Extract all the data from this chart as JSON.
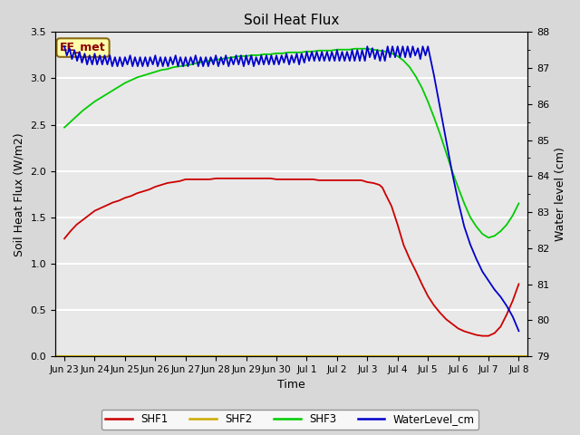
{
  "title": "Soil Heat Flux",
  "xlabel": "Time",
  "ylabel_left": "Soil Heat Flux (W/m2)",
  "ylabel_right": "Water level (cm)",
  "annotation": "EE_met",
  "ylim_left": [
    0.0,
    3.5
  ],
  "ylim_right": [
    79.0,
    88.0
  ],
  "colors": {
    "SHF1": "#cc0000",
    "SHF2": "#ccaa00",
    "SHF3": "#00cc00",
    "WaterLevel_cm": "#0000cc"
  },
  "xtick_labels": [
    "Jun 23",
    "Jun 24",
    "Jun 25",
    "Jun 26",
    "Jun 27",
    "Jun 28",
    "Jun 29",
    "Jun 30",
    "Jul 1",
    "Jul 2",
    "Jul 3",
    "Jul 4",
    "Jul 5",
    "Jul 6",
    "Jul 7",
    "Jul 8"
  ],
  "shf1_x": [
    0,
    0.2,
    0.4,
    0.6,
    0.8,
    1.0,
    1.2,
    1.4,
    1.6,
    1.8,
    2.0,
    2.2,
    2.4,
    2.6,
    2.8,
    3.0,
    3.2,
    3.4,
    3.6,
    3.8,
    4.0,
    4.2,
    4.4,
    4.6,
    4.8,
    5.0,
    5.2,
    5.4,
    5.6,
    5.8,
    6.0,
    6.2,
    6.4,
    6.6,
    6.8,
    7.0,
    7.2,
    7.4,
    7.6,
    7.8,
    8.0,
    8.2,
    8.4,
    8.6,
    8.8,
    9.0,
    9.2,
    9.4,
    9.6,
    9.8,
    10.0,
    10.2,
    10.4,
    10.5,
    10.6,
    10.8,
    11.0,
    11.2,
    11.4,
    11.6,
    11.8,
    12.0,
    12.2,
    12.4,
    12.6,
    12.8,
    13.0,
    13.2,
    13.4,
    13.6,
    13.8,
    14.0,
    14.2,
    14.4,
    14.6,
    14.8,
    15.0
  ],
  "shf1_y": [
    1.27,
    1.35,
    1.42,
    1.47,
    1.52,
    1.57,
    1.6,
    1.63,
    1.66,
    1.68,
    1.71,
    1.73,
    1.76,
    1.78,
    1.8,
    1.83,
    1.85,
    1.87,
    1.88,
    1.89,
    1.91,
    1.91,
    1.91,
    1.91,
    1.91,
    1.92,
    1.92,
    1.92,
    1.92,
    1.92,
    1.92,
    1.92,
    1.92,
    1.92,
    1.92,
    1.91,
    1.91,
    1.91,
    1.91,
    1.91,
    1.91,
    1.91,
    1.9,
    1.9,
    1.9,
    1.9,
    1.9,
    1.9,
    1.9,
    1.9,
    1.88,
    1.87,
    1.85,
    1.82,
    1.75,
    1.62,
    1.42,
    1.2,
    1.05,
    0.92,
    0.78,
    0.65,
    0.55,
    0.47,
    0.4,
    0.35,
    0.3,
    0.27,
    0.25,
    0.23,
    0.22,
    0.22,
    0.25,
    0.32,
    0.45,
    0.6,
    0.78
  ],
  "shf3_x": [
    0,
    0.2,
    0.4,
    0.6,
    0.8,
    1.0,
    1.2,
    1.4,
    1.6,
    1.8,
    2.0,
    2.2,
    2.4,
    2.6,
    2.8,
    3.0,
    3.2,
    3.4,
    3.6,
    3.8,
    4.0,
    4.2,
    4.4,
    4.6,
    4.8,
    5.0,
    5.2,
    5.4,
    5.6,
    5.8,
    6.0,
    6.2,
    6.4,
    6.6,
    6.8,
    7.0,
    7.2,
    7.4,
    7.6,
    7.8,
    8.0,
    8.2,
    8.4,
    8.6,
    8.8,
    9.0,
    9.2,
    9.4,
    9.6,
    9.8,
    10.0,
    10.2,
    10.4,
    10.6,
    10.8,
    11.0,
    11.2,
    11.4,
    11.6,
    11.8,
    12.0,
    12.2,
    12.4,
    12.6,
    12.8,
    13.0,
    13.2,
    13.4,
    13.6,
    13.8,
    14.0,
    14.2,
    14.4,
    14.6,
    14.8,
    15.0
  ],
  "shf3_y": [
    2.47,
    2.53,
    2.59,
    2.65,
    2.7,
    2.75,
    2.79,
    2.83,
    2.87,
    2.91,
    2.95,
    2.98,
    3.01,
    3.03,
    3.05,
    3.07,
    3.09,
    3.1,
    3.12,
    3.13,
    3.14,
    3.15,
    3.17,
    3.18,
    3.19,
    3.2,
    3.21,
    3.22,
    3.23,
    3.24,
    3.24,
    3.25,
    3.25,
    3.26,
    3.26,
    3.27,
    3.27,
    3.28,
    3.28,
    3.28,
    3.29,
    3.29,
    3.3,
    3.3,
    3.3,
    3.31,
    3.31,
    3.31,
    3.32,
    3.32,
    3.32,
    3.31,
    3.3,
    3.29,
    3.27,
    3.24,
    3.19,
    3.12,
    3.02,
    2.9,
    2.75,
    2.58,
    2.4,
    2.2,
    2.0,
    1.82,
    1.65,
    1.5,
    1.4,
    1.32,
    1.28,
    1.3,
    1.35,
    1.42,
    1.52,
    1.65
  ],
  "water_x": [
    0,
    0.08,
    0.17,
    0.25,
    0.33,
    0.42,
    0.5,
    0.58,
    0.67,
    0.75,
    0.83,
    0.92,
    1.0,
    1.08,
    1.17,
    1.25,
    1.33,
    1.42,
    1.5,
    1.58,
    1.67,
    1.75,
    1.83,
    1.92,
    2.0,
    2.08,
    2.17,
    2.25,
    2.33,
    2.42,
    2.5,
    2.58,
    2.67,
    2.75,
    2.83,
    2.92,
    3.0,
    3.08,
    3.17,
    3.25,
    3.33,
    3.42,
    3.5,
    3.58,
    3.67,
    3.75,
    3.83,
    3.92,
    4.0,
    4.08,
    4.17,
    4.25,
    4.33,
    4.42,
    4.5,
    4.58,
    4.67,
    4.75,
    4.83,
    4.92,
    5.0,
    5.08,
    5.17,
    5.25,
    5.33,
    5.42,
    5.5,
    5.58,
    5.67,
    5.75,
    5.83,
    5.92,
    6.0,
    6.08,
    6.17,
    6.25,
    6.33,
    6.42,
    6.5,
    6.58,
    6.67,
    6.75,
    6.83,
    6.92,
    7.0,
    7.08,
    7.17,
    7.25,
    7.33,
    7.42,
    7.5,
    7.58,
    7.67,
    7.75,
    7.83,
    7.92,
    8.0,
    8.08,
    8.17,
    8.25,
    8.33,
    8.42,
    8.5,
    8.58,
    8.67,
    8.75,
    8.83,
    8.92,
    9.0,
    9.08,
    9.17,
    9.25,
    9.33,
    9.42,
    9.5,
    9.58,
    9.67,
    9.75,
    9.83,
    9.92,
    10.0,
    10.08,
    10.17,
    10.25,
    10.33,
    10.42,
    10.5,
    10.58,
    10.67,
    10.75,
    10.83,
    10.92,
    11.0,
    11.08,
    11.17,
    11.25,
    11.33,
    11.42,
    11.5,
    11.58,
    11.67,
    11.75,
    11.83,
    11.92,
    12.0,
    12.2,
    12.4,
    12.6,
    12.8,
    13.0,
    13.2,
    13.4,
    13.6,
    13.8,
    14.0,
    14.2,
    14.4,
    14.6,
    14.8,
    15.0
  ],
  "water_y": [
    87.6,
    87.35,
    87.55,
    87.25,
    87.5,
    87.2,
    87.45,
    87.15,
    87.4,
    87.1,
    87.35,
    87.1,
    87.4,
    87.1,
    87.35,
    87.1,
    87.35,
    87.1,
    87.35,
    87.05,
    87.3,
    87.05,
    87.3,
    87.05,
    87.3,
    87.1,
    87.35,
    87.05,
    87.3,
    87.05,
    87.3,
    87.05,
    87.3,
    87.05,
    87.3,
    87.1,
    87.35,
    87.05,
    87.3,
    87.05,
    87.3,
    87.05,
    87.3,
    87.1,
    87.35,
    87.05,
    87.3,
    87.05,
    87.3,
    87.05,
    87.3,
    87.1,
    87.35,
    87.05,
    87.3,
    87.05,
    87.3,
    87.05,
    87.3,
    87.1,
    87.35,
    87.05,
    87.3,
    87.1,
    87.35,
    87.05,
    87.3,
    87.1,
    87.35,
    87.1,
    87.35,
    87.05,
    87.35,
    87.1,
    87.35,
    87.05,
    87.3,
    87.1,
    87.35,
    87.1,
    87.35,
    87.1,
    87.35,
    87.1,
    87.35,
    87.1,
    87.35,
    87.15,
    87.4,
    87.1,
    87.35,
    87.15,
    87.4,
    87.1,
    87.4,
    87.15,
    87.45,
    87.2,
    87.45,
    87.2,
    87.45,
    87.2,
    87.45,
    87.2,
    87.45,
    87.2,
    87.45,
    87.2,
    87.5,
    87.2,
    87.45,
    87.2,
    87.45,
    87.2,
    87.5,
    87.2,
    87.5,
    87.2,
    87.5,
    87.2,
    87.6,
    87.3,
    87.55,
    87.25,
    87.5,
    87.2,
    87.5,
    87.2,
    87.6,
    87.3,
    87.6,
    87.3,
    87.6,
    87.3,
    87.6,
    87.3,
    87.6,
    87.3,
    87.6,
    87.35,
    87.55,
    87.25,
    87.6,
    87.35,
    87.6,
    86.8,
    85.9,
    85.0,
    84.1,
    83.3,
    82.6,
    82.1,
    81.7,
    81.35,
    81.1,
    80.85,
    80.65,
    80.4,
    80.1,
    79.7
  ]
}
